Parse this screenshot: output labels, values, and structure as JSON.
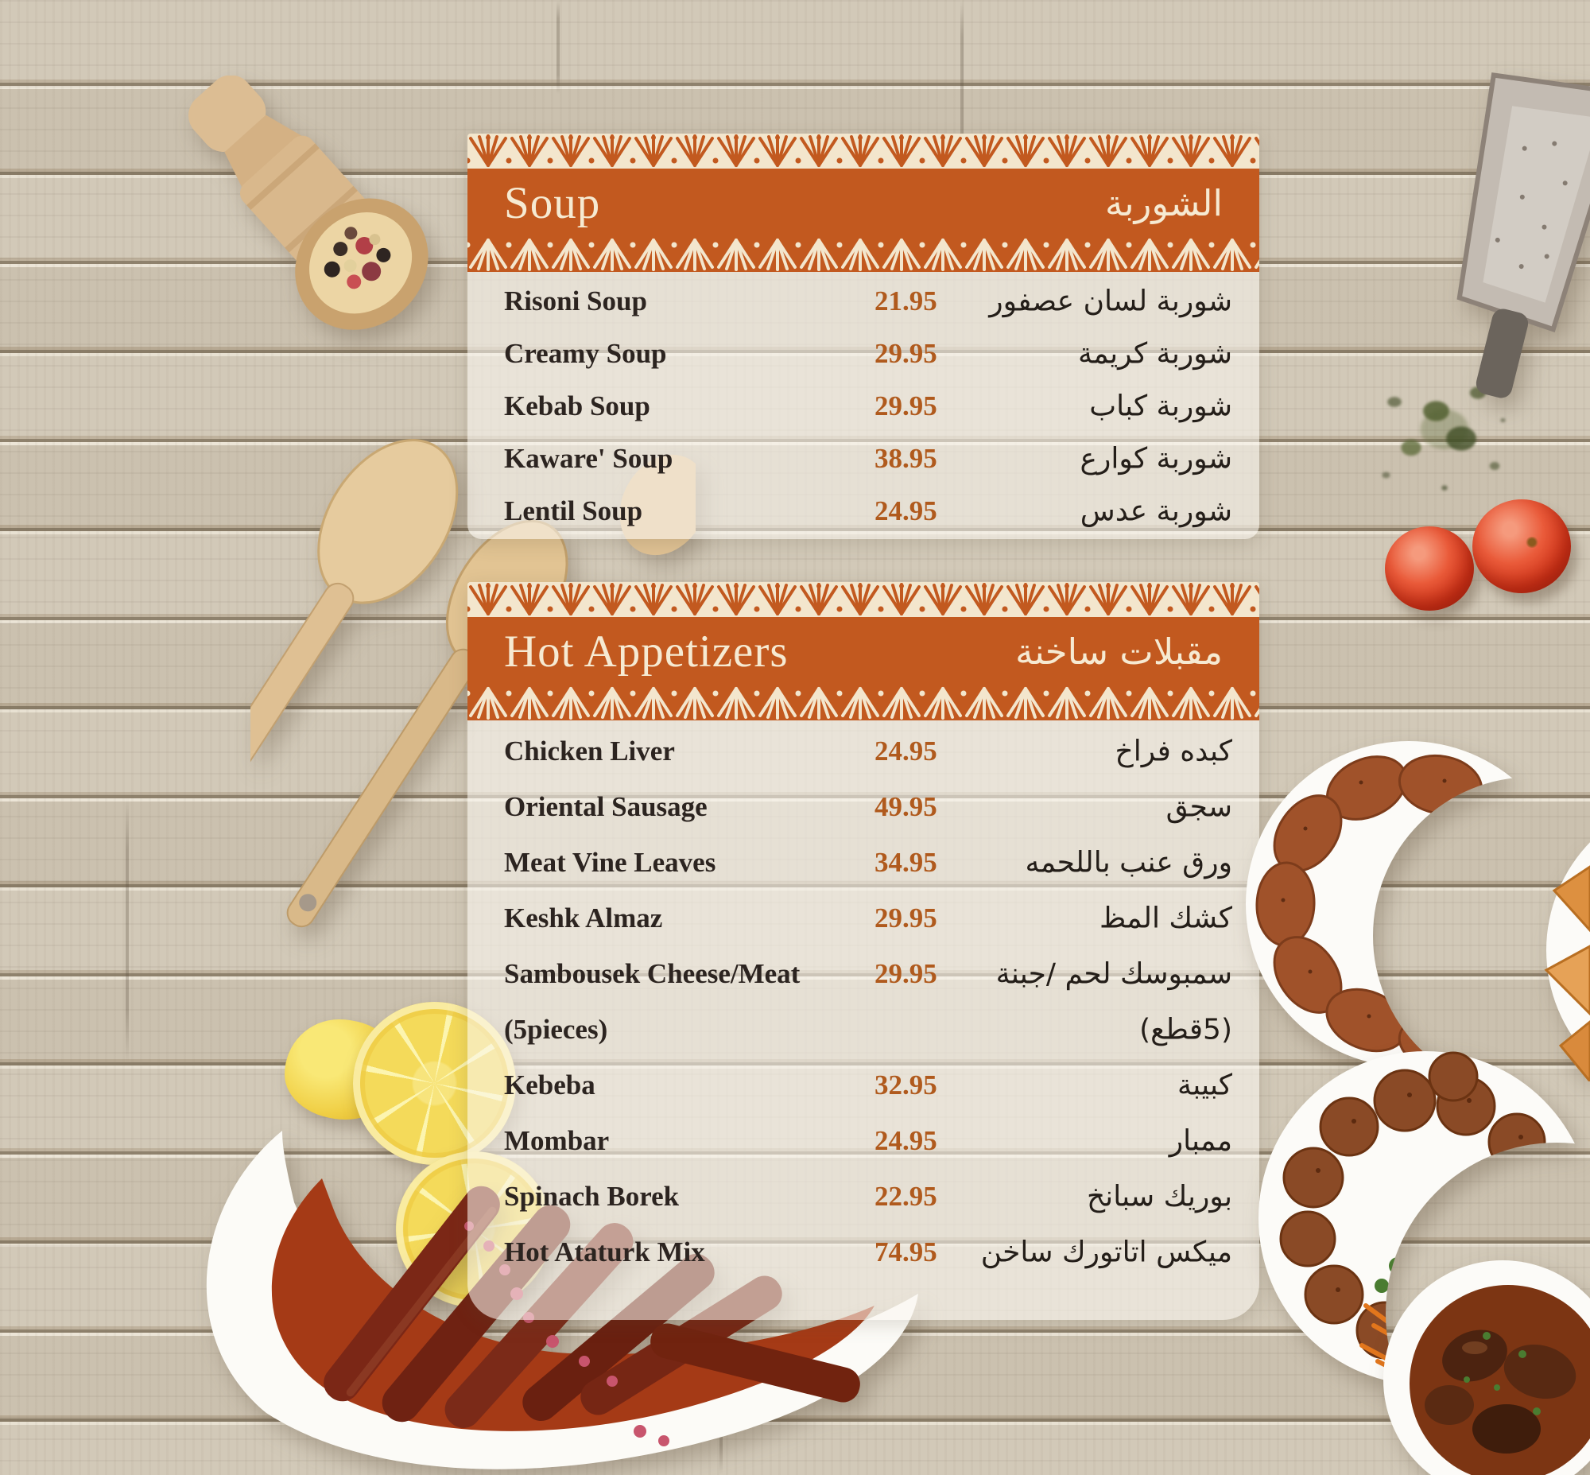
{
  "poster": {
    "kind": "restaurant-menu",
    "language": "English/Arabic"
  },
  "colors": {
    "header_bar": "#c2591f",
    "lace_cream": "#f3e6cd",
    "price_text": "#b05a1d",
    "item_text": "#2c2420",
    "arabic_text": "#241e19",
    "panel_background": "rgba(250,247,240,0.58)",
    "wood_base": "#cfc6b5"
  },
  "sections": [
    {
      "id": "soup",
      "title_en": "Soup",
      "title_ar": "الشوربة",
      "items": [
        {
          "name_en": "Risoni Soup",
          "price": "21.95",
          "name_ar": "شوربة لسان عصفور"
        },
        {
          "name_en": "Creamy Soup",
          "price": "29.95",
          "name_ar": "شوربة كريمة"
        },
        {
          "name_en": "Kebab Soup",
          "price": "29.95",
          "name_ar": "شوربة كباب"
        },
        {
          "name_en": "Kaware' Soup",
          "price": "38.95",
          "name_ar": "شوربة كوارع"
        },
        {
          "name_en": "Lentil Soup",
          "price": "24.95",
          "name_ar": "شوربة عدس"
        }
      ]
    },
    {
      "id": "hot-appetizers",
      "title_en": "Hot Appetizers",
      "title_ar": "مقبلات ساخنة",
      "items": [
        {
          "name_en": "Chicken Liver",
          "price": "24.95",
          "name_ar": "كبده فراخ"
        },
        {
          "name_en": "Oriental Sausage",
          "price": "49.95",
          "name_ar": "سجق"
        },
        {
          "name_en": "Meat Vine Leaves",
          "price": "34.95",
          "name_ar": "ورق عنب باللحمه"
        },
        {
          "name_en": "Keshk Almaz",
          "price": "29.95",
          "name_ar": "كشك المظ"
        },
        {
          "name_en": "Sambousek Cheese/Meat",
          "price": "29.95",
          "name_ar": "سمبوسك لحم /جبنة"
        },
        {
          "name_en": "(5pieces)",
          "price": "",
          "name_ar": "(5قطع)"
        },
        {
          "name_en": "Kebeba",
          "price": "32.95",
          "name_ar": "كبيبة"
        },
        {
          "name_en": "Mombar",
          "price": "24.95",
          "name_ar": "ممبار"
        },
        {
          "name_en": "Spinach Borek",
          "price": "22.95",
          "name_ar": "بوريك سبانخ"
        },
        {
          "name_en": "Hot Ataturk Mix",
          "price": "74.95",
          "name_ar": "ميكس اتاتورك ساخن"
        }
      ]
    }
  ],
  "decor": {
    "top_left": "wooden-spice-scoop-with-peppercorns",
    "top_right": "metal-grater",
    "right_upper": "dried-herbs-sprinkle",
    "right_mid": "two-tomatoes",
    "left_mid": "two-wooden-spatulas-and-spoon",
    "bottom_left_fruit": "lemon-and-two-lemon-slices",
    "bottom_left_dish": "sausages-in-tomato-sauce-crescent-dish",
    "right_dish_upper": "fried-kibbeh-crescent-plate-with-parsley",
    "right_edge_dish": "sambousek-pastry-plate",
    "right_dish_lower": "meatball-crescent-plate-with-parsley-and-carrot",
    "bottom_right_dish": "meat-in-sauce-bowl"
  }
}
